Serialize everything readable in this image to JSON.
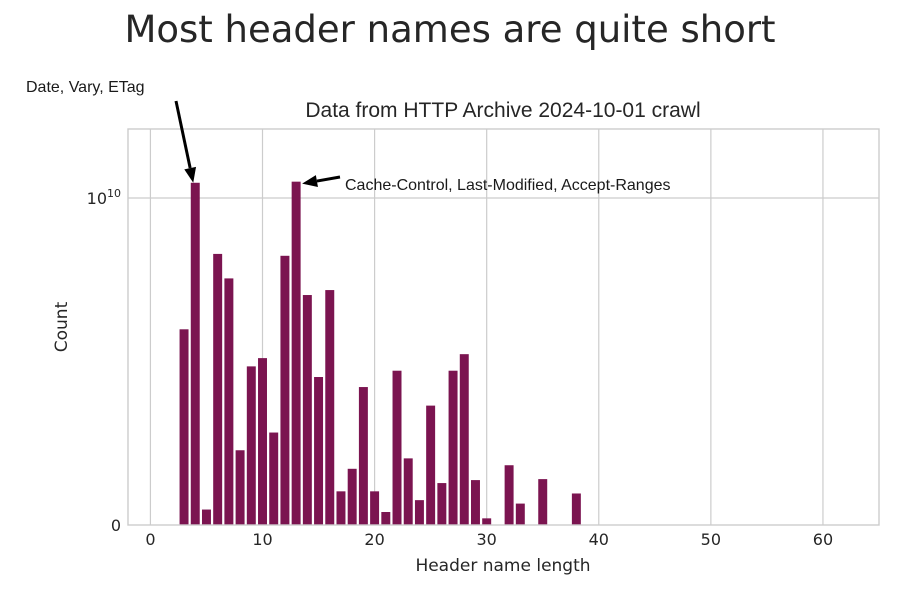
{
  "figure_title": "Most header names are quite short",
  "chart_data": {
    "type": "bar",
    "title": "Data from HTTP Archive 2024-10-01 crawl",
    "xlabel": "Header name length",
    "ylabel": "Count",
    "x_ticks": [
      "0",
      "10",
      "20",
      "30",
      "40",
      "50",
      "60"
    ],
    "x_tick_values": [
      0,
      10,
      20,
      30,
      40,
      50,
      60
    ],
    "xlim": [
      -2,
      65
    ],
    "y_scale": "symlog",
    "y_ticks": [
      {
        "base": "0",
        "exp": ""
      },
      {
        "base": "10",
        "exp": "10"
      }
    ],
    "grid": true,
    "bar_color": "#7b1450",
    "x": [
      3,
      4,
      5,
      6,
      7,
      8,
      9,
      10,
      11,
      12,
      13,
      14,
      15,
      16,
      17,
      18,
      19,
      20,
      21,
      22,
      23,
      24,
      25,
      26,
      27,
      28,
      29,
      30,
      31,
      32,
      33,
      34,
      35,
      36,
      37,
      38
    ],
    "values": [
      3200000000.0,
      11300000000.0,
      120000000.0,
      6300000000.0,
      5100000000.0,
      730000000.0,
      2200000000.0,
      2400000000.0,
      970000000.0,
      6200000000.0,
      11400000000.0,
      4400000000.0,
      1960000000.0,
      4600000000.0,
      280000000.0,
      510000000.0,
      1750000000.0,
      280000000.0,
      100000000.0,
      2100000000.0,
      630000000.0,
      200000000.0,
      1400000000.0,
      360000000.0,
      2100000000.0,
      2500000000.0,
      390000000.0,
      50000000.0,
      0,
      550000000.0,
      170000000.0,
      0,
      400000000.0,
      0,
      0,
      260000000.0
    ],
    "annotations": [
      {
        "text": "Date, Vary, ETag",
        "target_x": 4
      },
      {
        "text": "Cache-Control, Last-Modified, Accept-Ranges",
        "target_x": 13
      }
    ]
  }
}
